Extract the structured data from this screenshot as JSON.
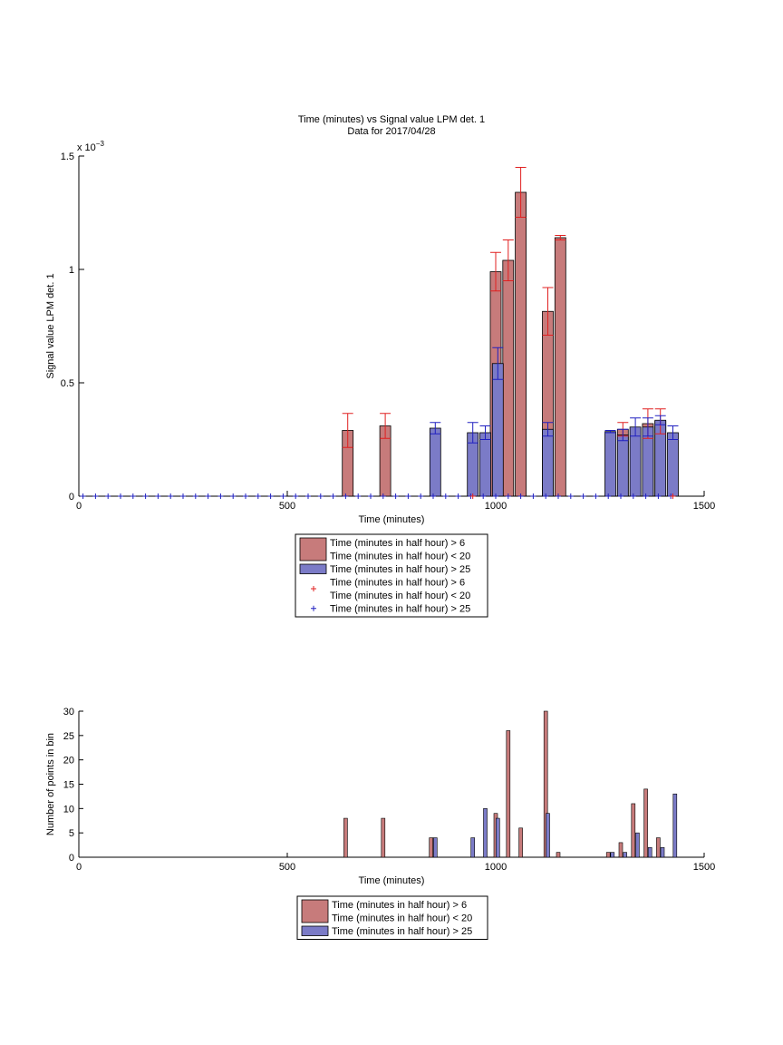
{
  "chart_data": [
    {
      "type": "bar",
      "title": "Time (minutes) vs Signal value LPM det. 1",
      "subtitle": "Data for 2017/04/28",
      "xlabel": "Time (minutes)",
      "ylabel": "Signal value LPM det. 1",
      "y_exponent": "x 10",
      "y_exponent_power": "−3",
      "xlim": [
        0,
        1500
      ],
      "ylim": [
        0,
        1.5
      ],
      "xticks": [
        "0",
        "500",
        "1000",
        "1500"
      ],
      "yticks": [
        "0",
        "0.5",
        "1",
        "1.5"
      ],
      "grid": false,
      "legend_position": "below plot",
      "legend": [
        {
          "label_line1": "Time (minutes in half hour) > 6",
          "label_line2": "Time (minutes in half hour) < 20",
          "kind": "bar",
          "color": "#c77b7b"
        },
        {
          "label_line1": "Time (minutes in half hour) > 25",
          "kind": "bar",
          "color": "#7b7bc7"
        },
        {
          "label_line1": "Time (minutes in half hour) > 6",
          "label_line2": "Time (minutes in half hour) < 20",
          "kind": "marker",
          "color": "#e02020"
        },
        {
          "label_line1": "Time (minutes in half hour) > 25",
          "kind": "marker",
          "color": "#2020c0"
        }
      ],
      "series": [
        {
          "color": "#c77b7b",
          "err_color": "#e02020",
          "x": [
            645,
            735,
            1000,
            1030,
            1060,
            1125,
            1155,
            1305,
            1365,
            1395
          ],
          "values": [
            0.29,
            0.31,
            0.99,
            1.04,
            1.34,
            0.815,
            1.14,
            0.295,
            0.32,
            0.33
          ],
          "err": [
            0.075,
            0.055,
            0.085,
            0.09,
            0.11,
            0.105,
            0.01,
            0.03,
            0.065,
            0.055
          ]
        },
        {
          "color": "#7b7bc7",
          "err_color": "#2020c0",
          "x": [
            855,
            945,
            975,
            1005,
            1125,
            1275,
            1305,
            1335,
            1365,
            1395,
            1425
          ],
          "values": [
            0.3,
            0.28,
            0.28,
            0.585,
            0.295,
            0.285,
            0.27,
            0.305,
            0.305,
            0.335,
            0.28
          ],
          "err": [
            0.025,
            0.045,
            0.03,
            0.07,
            0.03,
            0.005,
            0.025,
            0.04,
            0.04,
            0.02,
            0.03
          ]
        }
      ],
      "markers": {
        "red_x": [
          945,
          1425
        ],
        "blue_x": [
          10,
          40,
          70,
          100,
          130,
          160,
          190,
          220,
          250,
          280,
          310,
          340,
          370,
          400,
          430,
          460,
          490,
          520,
          550,
          580,
          610,
          640,
          670,
          700,
          730,
          760,
          790,
          820,
          850,
          880,
          910,
          940,
          970,
          1000,
          1030,
          1060,
          1090,
          1120,
          1150,
          1180,
          1210,
          1240,
          1270,
          1300,
          1330,
          1360,
          1390,
          1420
        ]
      }
    },
    {
      "type": "bar",
      "title": "",
      "xlabel": "Time (minutes)",
      "ylabel": "Number of points in bin",
      "xlim": [
        0,
        1500
      ],
      "ylim": [
        0,
        30
      ],
      "xticks": [
        "0",
        "500",
        "1000",
        "1500"
      ],
      "yticks": [
        "0",
        "5",
        "10",
        "15",
        "20",
        "25",
        "30"
      ],
      "grid": false,
      "legend_position": "below plot",
      "legend": [
        {
          "label_line1": "Time (minutes in half hour) > 6",
          "label_line2": "Time (minutes in half hour) < 20",
          "color": "#c77b7b"
        },
        {
          "label_line1": "Time (minutes in half hour) > 25",
          "color": "#7b7bc7"
        }
      ],
      "series": [
        {
          "color": "#c77b7b",
          "x": [
            640,
            730,
            845,
            1000,
            1030,
            1060,
            1120,
            1150,
            1270,
            1300,
            1330,
            1360,
            1390
          ],
          "values": [
            8,
            8,
            4,
            9,
            26,
            6,
            30,
            1,
            1,
            3,
            11,
            14,
            4
          ]
        },
        {
          "color": "#7b7bc7",
          "x": [
            855,
            945,
            975,
            1005,
            1125,
            1280,
            1310,
            1340,
            1370,
            1400,
            1430
          ],
          "values": [
            4,
            4,
            10,
            8,
            9,
            1,
            1,
            5,
            2,
            2,
            13
          ]
        }
      ]
    }
  ]
}
